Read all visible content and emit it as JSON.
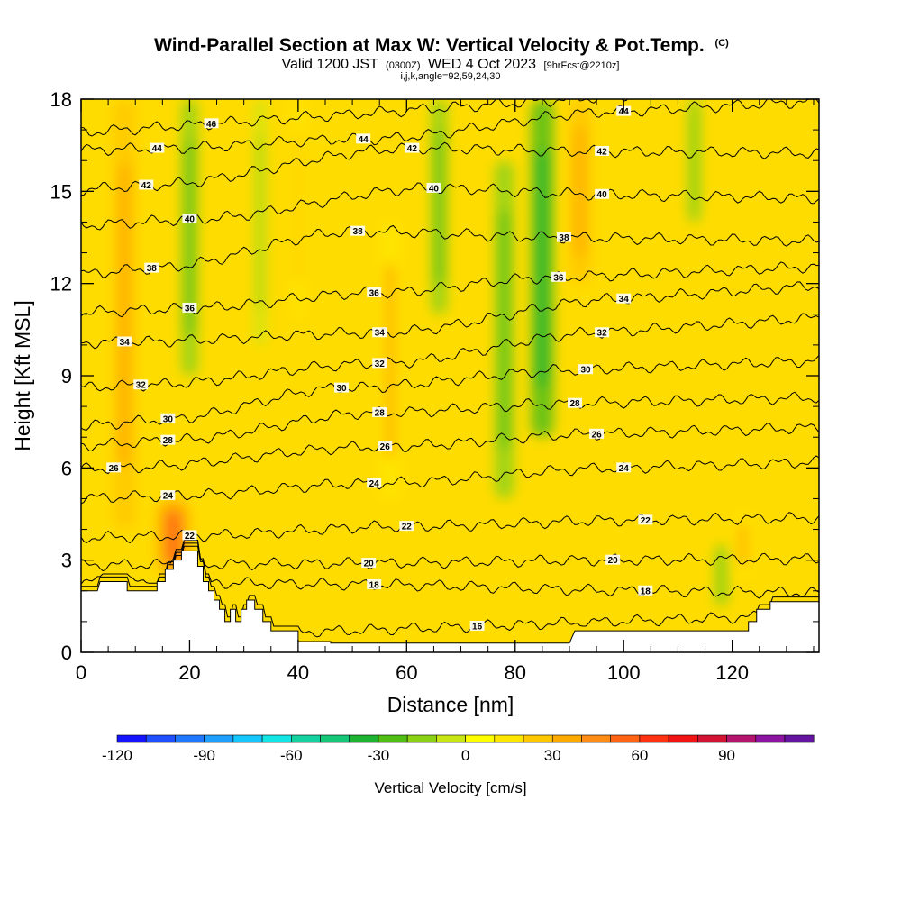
{
  "title": {
    "main": "Wind-Parallel Section at Max W: Vertical Velocity & Pot.Temp.",
    "main_unit": "(C)",
    "valid_prefix": "Valid 1200 JST",
    "valid_utc": "(0300Z)",
    "valid_date": "WED 4 Oct 2023",
    "forecast": "[9hrFcst@2210z]",
    "params": "i,j,k,angle=92,59,24,30"
  },
  "chart_data": {
    "type": "heatmap",
    "title": "Wind-Parallel Section at Max W: Vertical Velocity & Pot.Temp.",
    "xlabel": "Distance [nm]",
    "ylabel": "Height [Kft MSL]",
    "xlim": [
      0,
      136
    ],
    "ylim": [
      0,
      18
    ],
    "xticks": [
      0,
      20,
      40,
      60,
      80,
      100,
      120
    ],
    "yticks": [
      0,
      3,
      6,
      9,
      12,
      15,
      18
    ],
    "colorbar": {
      "title": "Vertical Velocity [cm/s]",
      "tick_labels": [
        "-120",
        "-90",
        "-60",
        "-30",
        "0",
        "30",
        "60",
        "90"
      ],
      "tick_values": [
        -120,
        -90,
        -60,
        -30,
        0,
        30,
        60,
        90
      ],
      "range": [
        -120,
        110
      ],
      "bins": [
        {
          "from": -120,
          "to": -110,
          "color": "#1414ff"
        },
        {
          "from": -110,
          "to": -100,
          "color": "#1f4fff"
        },
        {
          "from": -100,
          "to": -90,
          "color": "#1f78ff"
        },
        {
          "from": -90,
          "to": -80,
          "color": "#1fa0ff"
        },
        {
          "from": -80,
          "to": -70,
          "color": "#14c8ff"
        },
        {
          "from": -70,
          "to": -60,
          "color": "#14e6e6"
        },
        {
          "from": -60,
          "to": -50,
          "color": "#14d2a0"
        },
        {
          "from": -50,
          "to": -40,
          "color": "#14c878"
        },
        {
          "from": -40,
          "to": -30,
          "color": "#1eb432"
        },
        {
          "from": -30,
          "to": -20,
          "color": "#50be14"
        },
        {
          "from": -20,
          "to": -10,
          "color": "#8cd214"
        },
        {
          "from": -10,
          "to": 0,
          "color": "#c8e614"
        },
        {
          "from": 0,
          "to": 10,
          "color": "#ffff00"
        },
        {
          "from": 10,
          "to": 20,
          "color": "#ffe600"
        },
        {
          "from": 20,
          "to": 30,
          "color": "#ffc800"
        },
        {
          "from": 30,
          "to": 40,
          "color": "#ffaa00"
        },
        {
          "from": 40,
          "to": 50,
          "color": "#ff8c14"
        },
        {
          "from": 50,
          "to": 60,
          "color": "#ff6414"
        },
        {
          "from": 60,
          "to": 70,
          "color": "#ff3214"
        },
        {
          "from": 70,
          "to": 80,
          "color": "#f01414"
        },
        {
          "from": 80,
          "to": 90,
          "color": "#d21432"
        },
        {
          "from": 90,
          "to": 100,
          "color": "#b4146e"
        },
        {
          "from": 100,
          "to": 110,
          "color": "#8c14a0"
        },
        {
          "from": 110,
          "to": 120,
          "color": "#6414a0"
        }
      ]
    },
    "field_features": [
      {
        "type": "updraft",
        "x": 8,
        "z_from": 4,
        "z_to": 18,
        "w": 35
      },
      {
        "type": "updraft",
        "x": 17,
        "z_from": 2.5,
        "z_to": 5,
        "w": 50
      },
      {
        "type": "downdraft",
        "x": 20,
        "z_from": 9,
        "z_to": 18,
        "w": -25
      },
      {
        "type": "downdraft",
        "x": 33,
        "z_from": 10,
        "z_to": 18,
        "w": -15
      },
      {
        "type": "updraft",
        "x": 40,
        "z_from": 11,
        "z_to": 18,
        "w": 20
      },
      {
        "type": "updraft",
        "x": 57,
        "z_from": 5,
        "z_to": 14,
        "w": 30
      },
      {
        "type": "downdraft",
        "x": 66,
        "z_from": 11,
        "z_to": 18,
        "w": -25
      },
      {
        "type": "downdraft",
        "x": 78,
        "z_from": 5,
        "z_to": 16,
        "w": -30
      },
      {
        "type": "downdraft",
        "x": 85,
        "z_from": 7,
        "z_to": 18,
        "w": -35
      },
      {
        "type": "updraft",
        "x": 92,
        "z_from": 12,
        "z_to": 18,
        "w": 35
      },
      {
        "type": "downdraft",
        "x": 113,
        "z_from": 14,
        "z_to": 18,
        "w": -20
      },
      {
        "type": "updraft",
        "x": 122,
        "z_from": 2.5,
        "z_to": 4.5,
        "w": 30
      },
      {
        "type": "downdraft",
        "x": 118,
        "z_from": 1.5,
        "z_to": 3.5,
        "w": -20
      }
    ],
    "terrain": [
      {
        "x": 0,
        "z": 2.0
      },
      {
        "x": 3,
        "z": 2.0
      },
      {
        "x": 3.5,
        "z": 2.3
      },
      {
        "x": 8.5,
        "z": 2.3
      },
      {
        "x": 8.5,
        "z": 2.0
      },
      {
        "x": 14,
        "z": 2.0
      },
      {
        "x": 14,
        "z": 2.3
      },
      {
        "x": 15.5,
        "z": 2.3
      },
      {
        "x": 15.5,
        "z": 2.7
      },
      {
        "x": 17,
        "z": 2.7
      },
      {
        "x": 17,
        "z": 3.0
      },
      {
        "x": 18.5,
        "z": 3.0
      },
      {
        "x": 18.5,
        "z": 3.3
      },
      {
        "x": 21.5,
        "z": 3.3
      },
      {
        "x": 21.5,
        "z": 2.8
      },
      {
        "x": 22.5,
        "z": 2.8
      },
      {
        "x": 22.5,
        "z": 2.3
      },
      {
        "x": 23.5,
        "z": 2.3
      },
      {
        "x": 23.5,
        "z": 2.0
      },
      {
        "x": 24.5,
        "z": 2.0
      },
      {
        "x": 24.5,
        "z": 1.7
      },
      {
        "x": 25.5,
        "z": 1.7
      },
      {
        "x": 25.5,
        "z": 1.4
      },
      {
        "x": 26.5,
        "z": 1.4
      },
      {
        "x": 26.5,
        "z": 1.0
      },
      {
        "x": 27.5,
        "z": 1.0
      },
      {
        "x": 27.5,
        "z": 1.4
      },
      {
        "x": 28.5,
        "z": 1.4
      },
      {
        "x": 28.5,
        "z": 1.0
      },
      {
        "x": 29.5,
        "z": 1.0
      },
      {
        "x": 29.5,
        "z": 1.4
      },
      {
        "x": 30.5,
        "z": 1.4
      },
      {
        "x": 30.5,
        "z": 1.7
      },
      {
        "x": 32,
        "z": 1.7
      },
      {
        "x": 32,
        "z": 1.4
      },
      {
        "x": 33.5,
        "z": 1.4
      },
      {
        "x": 33.5,
        "z": 1.0
      },
      {
        "x": 35,
        "z": 1.0
      },
      {
        "x": 35,
        "z": 0.7
      },
      {
        "x": 40,
        "z": 0.7
      },
      {
        "x": 40,
        "z": 0.35
      },
      {
        "x": 46,
        "z": 0.35
      },
      {
        "x": 46,
        "z": 0.3
      },
      {
        "x": 73,
        "z": 0.3
      },
      {
        "x": 79,
        "z": 0.3
      },
      {
        "x": 87,
        "z": 0.3
      },
      {
        "x": 90,
        "z": 0.3
      },
      {
        "x": 91,
        "z": 0.7
      },
      {
        "x": 123,
        "z": 0.7
      },
      {
        "x": 123,
        "z": 1.0
      },
      {
        "x": 124.5,
        "z": 1.0
      },
      {
        "x": 124.5,
        "z": 1.4
      },
      {
        "x": 127,
        "z": 1.4
      },
      {
        "x": 127,
        "z": 1.65
      },
      {
        "x": 136,
        "z": 1.65
      }
    ],
    "contours": [
      {
        "theta": 16,
        "labels": [
          {
            "x": 73,
            "z": 0.85
          }
        ]
      },
      {
        "theta": 18,
        "labels": [
          {
            "x": 54,
            "z": 2.2
          },
          {
            "x": 104,
            "z": 2.0
          }
        ]
      },
      {
        "theta": 20,
        "labels": [
          {
            "x": 53,
            "z": 2.9
          },
          {
            "x": 98,
            "z": 3.0
          }
        ]
      },
      {
        "theta": 22,
        "labels": [
          {
            "x": 20,
            "z": 3.8
          },
          {
            "x": 60,
            "z": 4.1
          },
          {
            "x": 104,
            "z": 4.3
          }
        ]
      },
      {
        "theta": 24,
        "labels": [
          {
            "x": 16,
            "z": 5.1
          },
          {
            "x": 54,
            "z": 5.5
          },
          {
            "x": 100,
            "z": 6.0
          }
        ]
      },
      {
        "theta": 26,
        "labels": [
          {
            "x": 6,
            "z": 6.0
          },
          {
            "x": 56,
            "z": 6.7
          },
          {
            "x": 95,
            "z": 7.1
          }
        ]
      },
      {
        "theta": 28,
        "labels": [
          {
            "x": 16,
            "z": 6.9
          },
          {
            "x": 55,
            "z": 7.8
          },
          {
            "x": 91,
            "z": 8.1
          }
        ]
      },
      {
        "theta": 30,
        "labels": [
          {
            "x": 16,
            "z": 7.6
          },
          {
            "x": 48,
            "z": 8.6
          },
          {
            "x": 93,
            "z": 9.2
          }
        ]
      },
      {
        "theta": 32,
        "labels": [
          {
            "x": 11,
            "z": 8.7
          },
          {
            "x": 55,
            "z": 9.4
          },
          {
            "x": 96,
            "z": 10.4
          }
        ]
      },
      {
        "theta": 34,
        "labels": [
          {
            "x": 8,
            "z": 10.1
          },
          {
            "x": 55,
            "z": 10.4
          },
          {
            "x": 100,
            "z": 11.5
          }
        ]
      },
      {
        "theta": 36,
        "labels": [
          {
            "x": 20,
            "z": 11.2
          },
          {
            "x": 54,
            "z": 11.7
          },
          {
            "x": 88,
            "z": 12.2
          }
        ]
      },
      {
        "theta": 38,
        "labels": [
          {
            "x": 13,
            "z": 12.5
          },
          {
            "x": 51,
            "z": 13.7
          },
          {
            "x": 89,
            "z": 13.5
          }
        ]
      },
      {
        "theta": 40,
        "labels": [
          {
            "x": 20,
            "z": 14.1
          },
          {
            "x": 65,
            "z": 15.1
          },
          {
            "x": 96,
            "z": 14.9
          }
        ]
      },
      {
        "theta": 42,
        "labels": [
          {
            "x": 12,
            "z": 15.2
          },
          {
            "x": 61,
            "z": 16.4
          },
          {
            "x": 96,
            "z": 16.3
          }
        ]
      },
      {
        "theta": 44,
        "labels": [
          {
            "x": 14,
            "z": 16.4
          },
          {
            "x": 52,
            "z": 16.7
          },
          {
            "x": 100,
            "z": 17.6
          }
        ]
      },
      {
        "theta": 46,
        "labels": [
          {
            "x": 24,
            "z": 17.2
          }
        ]
      }
    ]
  }
}
